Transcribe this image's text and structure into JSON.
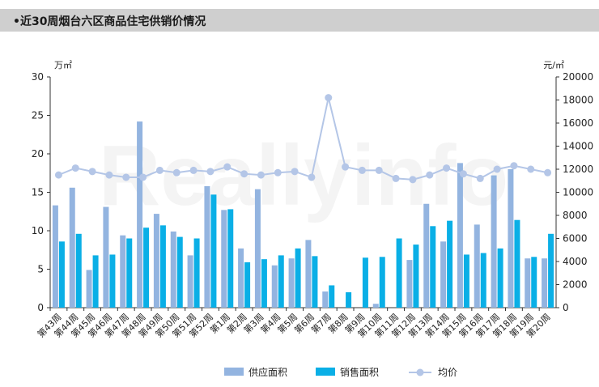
{
  "header": {
    "title": "•近30周烟台六区商品住宅供销价情况"
  },
  "chart_data": {
    "type": "bar",
    "title": "•近30周烟台六区商品住宅供销价情况",
    "watermark": "Reallyinfo",
    "categories": [
      "第43周",
      "第44周",
      "第45周",
      "第46周",
      "第47周",
      "第48周",
      "第49周",
      "第50周",
      "第51周",
      "第52周",
      "第1周",
      "第2周",
      "第3周",
      "第4周",
      "第5周",
      "第6周",
      "第7周",
      "第8周",
      "第9周",
      "第10周",
      "第11周",
      "第12周",
      "第13周",
      "第14周",
      "第15周",
      "第16周",
      "第17周",
      "第18周",
      "第19周",
      "第20周"
    ],
    "y_left": {
      "unit": "万㎡",
      "min": 0,
      "max": 30,
      "ticks": [
        0,
        5,
        10,
        15,
        20,
        25,
        30
      ]
    },
    "y_right": {
      "unit": "元/㎡",
      "min": 0,
      "max": 20000,
      "ticks": [
        0,
        2000,
        4000,
        6000,
        8000,
        10000,
        12000,
        14000,
        16000,
        18000,
        20000
      ]
    },
    "series": [
      {
        "name": "供应面积",
        "type": "bar",
        "axis": "left",
        "color": "#93b4e0",
        "values": [
          13.3,
          15.6,
          4.9,
          13.1,
          9.4,
          24.2,
          12.2,
          9.9,
          6.8,
          15.8,
          12.7,
          7.7,
          15.4,
          5.5,
          6.4,
          8.8,
          2.1,
          0,
          0,
          0.5,
          0,
          6.2,
          13.5,
          8.6,
          18.8,
          10.8,
          17.2,
          18.0,
          6.4,
          6.4
        ]
      },
      {
        "name": "销售面积",
        "type": "bar",
        "axis": "left",
        "color": "#0aafe6",
        "values": [
          8.6,
          9.6,
          6.8,
          6.9,
          9.0,
          10.4,
          10.7,
          9.2,
          9.0,
          14.7,
          12.8,
          5.9,
          6.3,
          6.8,
          7.7,
          6.7,
          2.9,
          2.0,
          6.5,
          6.6,
          9.0,
          8.2,
          10.6,
          11.3,
          6.9,
          7.1,
          7.7,
          11.4,
          6.6,
          9.6
        ]
      },
      {
        "name": "均价",
        "type": "line",
        "axis": "right",
        "color": "#b4c6e7",
        "values": [
          11500,
          12100,
          11800,
          11500,
          11300,
          11300,
          11900,
          11700,
          11900,
          11800,
          12200,
          11600,
          11500,
          11700,
          11800,
          11300,
          18200,
          12200,
          11900,
          11900,
          11200,
          11100,
          11500,
          12100,
          11600,
          11200,
          12000,
          12300,
          12000,
          11700
        ]
      }
    ],
    "legend": {
      "position": "bottom"
    },
    "grid": false
  }
}
